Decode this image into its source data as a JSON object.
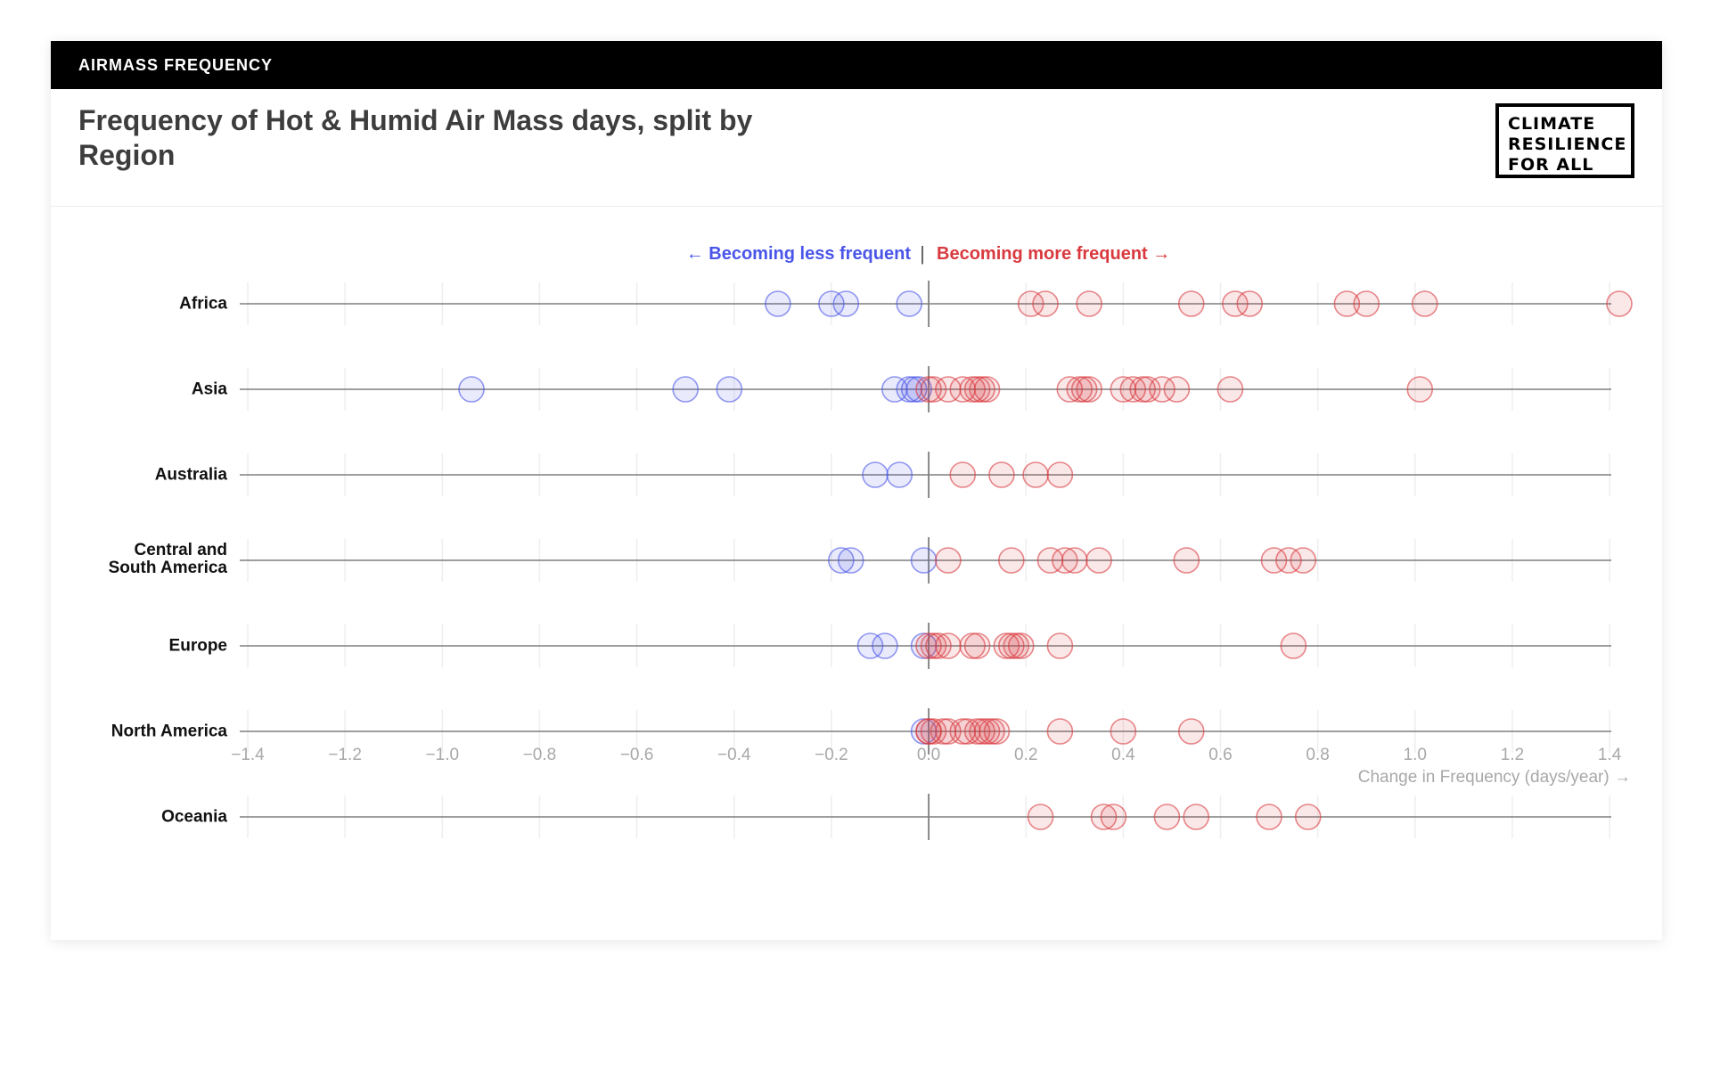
{
  "topbar": {
    "label": "AIRMASS FREQUENCY"
  },
  "header": {
    "title": "Frequency of Hot & Humid Air Mass days, split by Region",
    "logo_lines": [
      "CLIMATE",
      "RESILIENCE",
      "FOR ALL"
    ]
  },
  "legend": {
    "less": "← Becoming less frequent",
    "more": "Becoming more frequent →",
    "separator": "|"
  },
  "colors": {
    "negative": "#4a55e8",
    "positive": "#d9393e"
  },
  "chart_data": {
    "type": "scatter",
    "xlabel": "Change in Frequency (days/year) →",
    "xlim": [
      -1.4,
      1.42
    ],
    "xticks": [
      -1.4,
      -1.2,
      -1.0,
      -0.8,
      -0.6,
      -0.4,
      -0.2,
      0.0,
      0.2,
      0.4,
      0.6,
      0.8,
      1.0,
      1.2,
      1.4
    ],
    "xtick_labels": [
      "−1.4",
      "−1.2",
      "−1.0",
      "−0.8",
      "−0.6",
      "−0.4",
      "−0.2",
      "0.0",
      "0.2",
      "0.4",
      "0.6",
      "0.8",
      "1.0",
      "1.2",
      "1.4"
    ],
    "grid": true,
    "series": [
      {
        "name": "Africa",
        "values": [
          -0.31,
          -0.2,
          -0.17,
          -0.04,
          0.21,
          0.24,
          0.33,
          0.54,
          0.63,
          0.66,
          0.86,
          0.9,
          1.02,
          1.42
        ]
      },
      {
        "name": "Asia",
        "values": [
          -0.94,
          -0.5,
          -0.41,
          -0.07,
          -0.04,
          -0.03,
          -0.02,
          0.0,
          0.01,
          0.04,
          0.07,
          0.09,
          0.1,
          0.11,
          0.12,
          0.29,
          0.31,
          0.32,
          0.33,
          0.4,
          0.42,
          0.44,
          0.45,
          0.48,
          0.51,
          0.62,
          1.01
        ]
      },
      {
        "name": "Australia",
        "values": [
          -0.11,
          -0.06,
          0.07,
          0.15,
          0.22,
          0.27
        ]
      },
      {
        "name": "Central and\nSouth America",
        "values": [
          -0.18,
          -0.16,
          -0.01,
          0.04,
          0.17,
          0.25,
          0.28,
          0.3,
          0.35,
          0.53,
          0.71,
          0.74,
          0.77
        ]
      },
      {
        "name": "Europe",
        "values": [
          -0.12,
          -0.09,
          -0.01,
          0.0,
          0.01,
          0.02,
          0.04,
          0.09,
          0.1,
          0.16,
          0.17,
          0.18,
          0.19,
          0.27,
          0.75
        ]
      },
      {
        "name": "North America",
        "values": [
          -0.01,
          0.0,
          0.0,
          0.01,
          0.03,
          0.04,
          0.07,
          0.08,
          0.1,
          0.11,
          0.12,
          0.13,
          0.14,
          0.27,
          0.4,
          0.54
        ]
      },
      {
        "name": "Oceania",
        "values": [
          0.23,
          0.36,
          0.38,
          0.49,
          0.55,
          0.7,
          0.78
        ]
      }
    ]
  }
}
